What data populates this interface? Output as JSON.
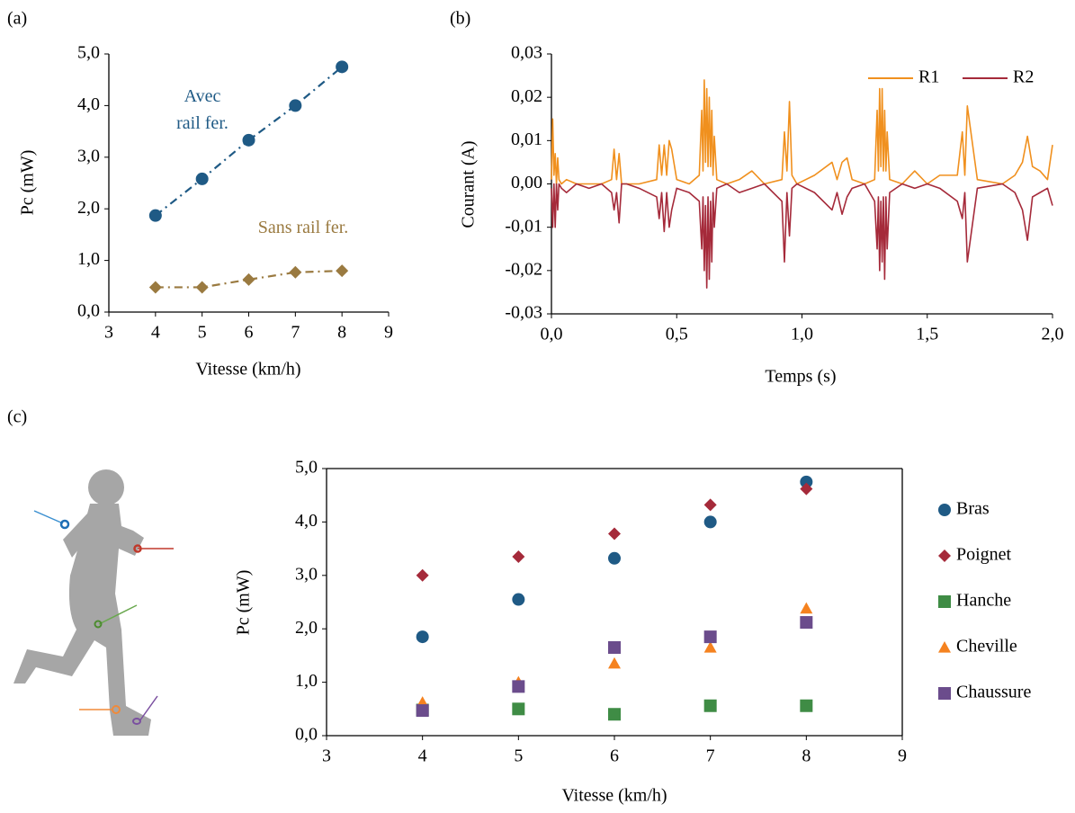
{
  "chart_data": [
    {
      "type": "scatter",
      "panel_label": "(a)",
      "x_label": "Vitesse (km/h)",
      "y_label": "Pc (mW)",
      "x": [
        4,
        5,
        6,
        7,
        8
      ],
      "series": [
        {
          "name": "Avec rail fer.",
          "color": "#1f5a85",
          "marker": "circle",
          "line_style": "dashdot",
          "values": [
            1.87,
            2.58,
            3.33,
            4.0,
            4.75
          ]
        },
        {
          "name": "Sans rail fer.",
          "color": "#9a7a40",
          "marker": "diamond",
          "line_style": "dashdot",
          "values": [
            0.48,
            0.48,
            0.63,
            0.77,
            0.8
          ]
        }
      ],
      "xlim": [
        3,
        9
      ],
      "xticks": [
        3,
        4,
        5,
        6,
        7,
        8,
        9
      ],
      "ylim": [
        0,
        5
      ],
      "yticks": [
        {
          "value": 0,
          "label": "0,0"
        },
        {
          "value": 1,
          "label": "1,0"
        },
        {
          "value": 2,
          "label": "2,0"
        },
        {
          "value": 3,
          "label": "3,0"
        },
        {
          "value": 4,
          "label": "4,0"
        },
        {
          "value": 5,
          "label": "5,0"
        }
      ],
      "series_labels": true,
      "frame": false
    },
    {
      "type": "line",
      "panel_label": "(b)",
      "x_label": "Temps (s)",
      "y_label": "Courant (A)",
      "x": [
        0,
        0.005,
        0.01,
        0.015,
        0.02,
        0.025,
        0.03,
        0.04,
        0.06,
        0.1,
        0.15,
        0.2,
        0.24,
        0.25,
        0.26,
        0.27,
        0.28,
        0.3,
        0.35,
        0.42,
        0.43,
        0.44,
        0.45,
        0.46,
        0.47,
        0.48,
        0.5,
        0.55,
        0.59,
        0.6,
        0.605,
        0.61,
        0.615,
        0.62,
        0.625,
        0.63,
        0.635,
        0.64,
        0.645,
        0.65,
        0.66,
        0.7,
        0.75,
        0.8,
        0.85,
        0.92,
        0.93,
        0.94,
        0.95,
        0.96,
        0.98,
        1.05,
        1.12,
        1.14,
        1.16,
        1.18,
        1.2,
        1.25,
        1.29,
        1.3,
        1.305,
        1.31,
        1.315,
        1.32,
        1.325,
        1.33,
        1.335,
        1.34,
        1.35,
        1.4,
        1.45,
        1.5,
        1.55,
        1.62,
        1.64,
        1.65,
        1.66,
        1.7,
        1.8,
        1.85,
        1.88,
        1.9,
        1.92,
        1.95,
        1.98,
        2.0
      ],
      "series": [
        {
          "name": "R1",
          "color": "#f0901e",
          "values": [
            0.001,
            0.015,
            0.002,
            0.007,
            0.0,
            0.006,
            0.001,
            0.0,
            0.001,
            0.0,
            0.0,
            0.0,
            0.001,
            0.008,
            0.001,
            0.007,
            0.0,
            0.0,
            0.0,
            0.001,
            0.009,
            0.002,
            0.009,
            0.002,
            0.01,
            0.008,
            0.001,
            0.0,
            0.002,
            0.017,
            0.003,
            0.024,
            0.005,
            0.022,
            0.004,
            0.02,
            0.004,
            0.017,
            0.002,
            0.011,
            0.001,
            0.0,
            0.001,
            0.003,
            0.0,
            0.001,
            0.012,
            0.003,
            0.019,
            0.002,
            0.0,
            0.002,
            0.005,
            0.001,
            0.005,
            0.006,
            0.001,
            0.0,
            0.001,
            0.017,
            0.003,
            0.022,
            0.004,
            0.022,
            0.003,
            0.017,
            0.003,
            0.012,
            0.001,
            0.0,
            0.003,
            0.0,
            0.002,
            0.002,
            0.012,
            0.002,
            0.018,
            0.001,
            0.0,
            0.002,
            0.005,
            0.011,
            0.004,
            0.003,
            0.001,
            0.009
          ]
        },
        {
          "name": "R2",
          "color": "#a52a3a",
          "values": [
            -0.001,
            -0.01,
            0.0,
            -0.01,
            0.0,
            -0.006,
            0.0,
            -0.001,
            -0.002,
            0.0,
            -0.001,
            0.0,
            -0.002,
            -0.006,
            -0.002,
            -0.009,
            0.0,
            0.0,
            -0.001,
            -0.003,
            -0.008,
            -0.002,
            -0.011,
            -0.002,
            -0.01,
            -0.006,
            -0.001,
            -0.002,
            -0.004,
            -0.015,
            -0.003,
            -0.02,
            -0.005,
            -0.024,
            -0.003,
            -0.022,
            -0.004,
            -0.018,
            -0.002,
            -0.01,
            -0.001,
            0.0,
            -0.002,
            -0.001,
            0.0,
            -0.004,
            -0.018,
            -0.002,
            -0.012,
            -0.001,
            0.0,
            -0.002,
            -0.006,
            -0.002,
            -0.007,
            -0.003,
            -0.001,
            0.0,
            -0.004,
            -0.015,
            -0.003,
            -0.02,
            -0.004,
            -0.018,
            -0.003,
            -0.022,
            -0.003,
            -0.015,
            -0.002,
            0.0,
            -0.001,
            0.0,
            -0.001,
            -0.004,
            -0.008,
            -0.002,
            -0.018,
            -0.001,
            0.0,
            -0.002,
            -0.006,
            -0.013,
            -0.003,
            -0.002,
            -0.001,
            -0.005
          ]
        }
      ],
      "xlim": [
        0,
        2
      ],
      "xticks": [
        {
          "value": 0,
          "label": "0,0"
        },
        {
          "value": 0.5,
          "label": "0,5"
        },
        {
          "value": 1,
          "label": "1,0"
        },
        {
          "value": 1.5,
          "label": "1,5"
        },
        {
          "value": 2,
          "label": "2,0"
        }
      ],
      "ylim": [
        -0.03,
        0.03
      ],
      "yticks": [
        {
          "value": -0.03,
          "label": "-0,03"
        },
        {
          "value": -0.02,
          "label": "-0,02"
        },
        {
          "value": -0.01,
          "label": "-0,01"
        },
        {
          "value": 0,
          "label": "0,00"
        },
        {
          "value": 0.01,
          "label": "0,01"
        },
        {
          "value": 0.02,
          "label": "0,02"
        },
        {
          "value": 0.03,
          "label": "0,03"
        }
      ],
      "legend": "top-right",
      "frame": false
    },
    {
      "type": "scatter",
      "panel_label": "(c)",
      "x_label": "Vitesse (km/h)",
      "y_label": "Pc (mW)",
      "x": [
        4,
        5,
        6,
        7,
        8
      ],
      "series": [
        {
          "name": "Bras",
          "color": "#1f5a85",
          "marker": "circle",
          "values": [
            1.85,
            2.55,
            3.32,
            4.0,
            4.75
          ]
        },
        {
          "name": "Poignet",
          "color": "#a52a3a",
          "marker": "diamond",
          "values": [
            3.0,
            3.35,
            3.78,
            4.32,
            4.62
          ]
        },
        {
          "name": "Hanche",
          "color": "#3f8c45",
          "marker": "square",
          "values": [
            0.48,
            0.5,
            0.4,
            0.56,
            0.56
          ]
        },
        {
          "name": "Cheville",
          "color": "#f5821f",
          "marker": "triangle",
          "values": [
            0.62,
            1.0,
            1.35,
            1.65,
            2.38
          ]
        },
        {
          "name": "Chaussure",
          "color": "#6b4c8c",
          "marker": "square",
          "values": [
            0.47,
            0.92,
            1.65,
            1.85,
            2.12
          ]
        }
      ],
      "xlim": [
        3,
        9
      ],
      "xticks": [
        3,
        4,
        5,
        6,
        7,
        8,
        9
      ],
      "ylim": [
        0,
        5
      ],
      "yticks": [
        {
          "value": 0,
          "label": "0,0"
        },
        {
          "value": 1,
          "label": "1,0"
        },
        {
          "value": 2,
          "label": "2,0"
        },
        {
          "value": 3,
          "label": "3,0"
        },
        {
          "value": 4,
          "label": "4,0"
        },
        {
          "value": 5,
          "label": "5,0"
        }
      ],
      "legend": "right",
      "frame": true
    }
  ]
}
